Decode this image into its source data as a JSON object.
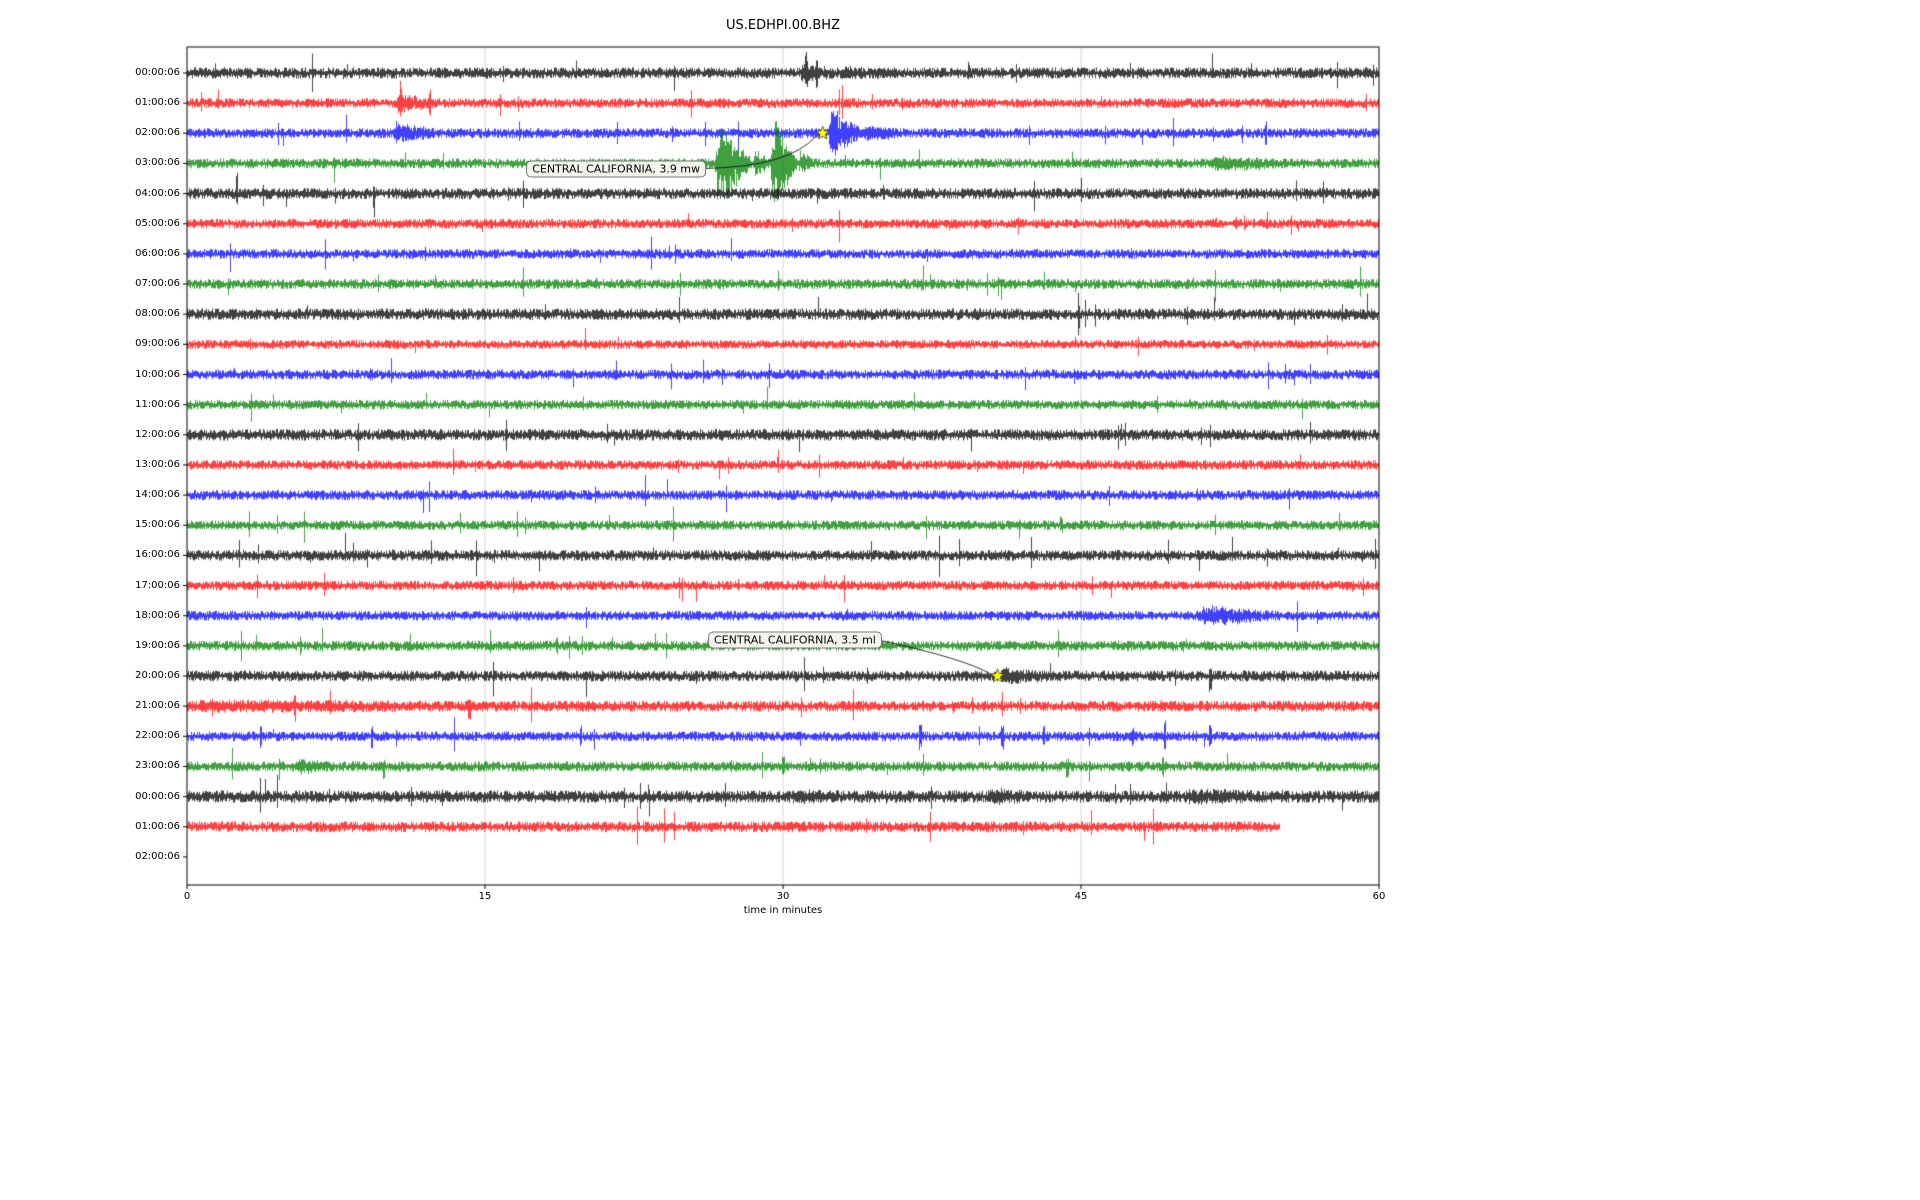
{
  "chart_data": {
    "type": "line",
    "subtype": "seismogram-dayplot",
    "title": "US.EDHPI.00.BHZ",
    "xlabel": "time in minutes",
    "xlim": [
      0,
      60
    ],
    "x_ticks": [
      0,
      15,
      30,
      45,
      60
    ],
    "grid": "vertical-only",
    "trace_colors_cycle": [
      "#000000",
      "#ff0000",
      "#0000ff",
      "#008000"
    ],
    "grid_color": "#cccccc",
    "frame_color": "#000000",
    "marker_color": "#ffff00",
    "rows": [
      {
        "label": "00:00:06",
        "color": "#000000",
        "amp": 3.0,
        "end": 60
      },
      {
        "label": "01:00:06",
        "color": "#ff0000",
        "amp": 2.6,
        "end": 60
      },
      {
        "label": "02:00:06",
        "color": "#0000ff",
        "amp": 2.7,
        "end": 60
      },
      {
        "label": "03:00:06",
        "color": "#008000",
        "amp": 2.7,
        "end": 60
      },
      {
        "label": "04:00:06",
        "color": "#000000",
        "amp": 3.0,
        "end": 60
      },
      {
        "label": "05:00:06",
        "color": "#ff0000",
        "amp": 2.6,
        "end": 60
      },
      {
        "label": "06:00:06",
        "color": "#0000ff",
        "amp": 2.6,
        "end": 60
      },
      {
        "label": "07:00:06",
        "color": "#008000",
        "amp": 2.7,
        "end": 60
      },
      {
        "label": "08:00:06",
        "color": "#000000",
        "amp": 3.1,
        "end": 60
      },
      {
        "label": "09:00:06",
        "color": "#ff0000",
        "amp": 2.4,
        "end": 60
      },
      {
        "label": "10:00:06",
        "color": "#0000ff",
        "amp": 2.7,
        "end": 60
      },
      {
        "label": "11:00:06",
        "color": "#008000",
        "amp": 2.6,
        "end": 60
      },
      {
        "label": "12:00:06",
        "color": "#000000",
        "amp": 3.1,
        "end": 60
      },
      {
        "label": "13:00:06",
        "color": "#ff0000",
        "amp": 2.6,
        "end": 60
      },
      {
        "label": "14:00:06",
        "color": "#0000ff",
        "amp": 2.7,
        "end": 60
      },
      {
        "label": "15:00:06",
        "color": "#008000",
        "amp": 2.6,
        "end": 60
      },
      {
        "label": "16:00:06",
        "color": "#000000",
        "amp": 2.9,
        "end": 60
      },
      {
        "label": "17:00:06",
        "color": "#ff0000",
        "amp": 2.6,
        "end": 60
      },
      {
        "label": "18:00:06",
        "color": "#0000ff",
        "amp": 2.6,
        "end": 60
      },
      {
        "label": "19:00:06",
        "color": "#008000",
        "amp": 2.7,
        "end": 60
      },
      {
        "label": "20:00:06",
        "color": "#000000",
        "amp": 2.9,
        "end": 60
      },
      {
        "label": "21:00:06",
        "color": "#ff0000",
        "amp": 2.9,
        "end": 60
      },
      {
        "label": "22:00:06",
        "color": "#0000ff",
        "amp": 2.6,
        "end": 60
      },
      {
        "label": "23:00:06",
        "color": "#008000",
        "amp": 2.7,
        "end": 60
      },
      {
        "label": "00:00:06",
        "color": "#000000",
        "amp": 3.3,
        "end": 60
      },
      {
        "label": "01:00:06",
        "color": "#ff0000",
        "amp": 2.9,
        "end": 55
      },
      {
        "label": "02:00:06",
        "color": "#000000",
        "amp": 0,
        "end": 0
      }
    ],
    "bursts": [
      {
        "row": 0,
        "start": 30.8,
        "end": 32.6,
        "amp": 6
      },
      {
        "row": 0,
        "start": 32.9,
        "end": 34.2,
        "amp": 4
      },
      {
        "row": 1,
        "start": 10.4,
        "end": 12.5,
        "amp": 7
      },
      {
        "row": 2,
        "start": 10.3,
        "end": 12.5,
        "amp": 9
      },
      {
        "row": 2,
        "start": 32.25,
        "end": 34.0,
        "amp": 26
      },
      {
        "row": 2,
        "start": 34.0,
        "end": 36.0,
        "amp": 5
      },
      {
        "row": 3,
        "start": 26.55,
        "end": 28.45,
        "amp": 52
      },
      {
        "row": 3,
        "start": 28.45,
        "end": 29.35,
        "amp": 16
      },
      {
        "row": 3,
        "start": 29.35,
        "end": 30.75,
        "amp": 52
      },
      {
        "row": 3,
        "start": 30.75,
        "end": 31.6,
        "amp": 10
      },
      {
        "row": 3,
        "start": 51.5,
        "end": 55.3,
        "amp": 5
      },
      {
        "row": 18,
        "start": 50.8,
        "end": 55.2,
        "amp": 8
      },
      {
        "row": 20,
        "start": 40.9,
        "end": 43.6,
        "amp": 5
      },
      {
        "row": 21,
        "start": 0.0,
        "end": 13.6,
        "amp": 2.5
      },
      {
        "row": 23,
        "start": 5.5,
        "end": 7.3,
        "amp": 5
      },
      {
        "row": 24,
        "start": 30.4,
        "end": 32.3,
        "amp": 3.5
      },
      {
        "row": 24,
        "start": 40.3,
        "end": 42.4,
        "amp": 4
      },
      {
        "row": 24,
        "start": 50.2,
        "end": 53.7,
        "amp": 4
      }
    ],
    "spikes": [
      {
        "row": 0,
        "minute": 31.15,
        "up": 12,
        "down": 9
      },
      {
        "row": 0,
        "minute": 31.7,
        "up": 9,
        "down": 12
      },
      {
        "row": 1,
        "minute": 10.75,
        "up": 17,
        "down": 6
      },
      {
        "row": 1,
        "minute": 12.2,
        "up": 13,
        "down": 13
      },
      {
        "row": 2,
        "minute": 54.3,
        "up": 8,
        "down": 8
      },
      {
        "row": 4,
        "minute": 2.5,
        "up": 21,
        "down": 12
      },
      {
        "row": 4,
        "minute": 9.4,
        "up": 4,
        "down": 19
      },
      {
        "row": 15,
        "minute": 44.0,
        "up": 5,
        "down": 4
      },
      {
        "row": 19,
        "minute": 5.7,
        "up": 5,
        "down": 5
      },
      {
        "row": 19,
        "minute": 18.6,
        "up": 6,
        "down": 6
      },
      {
        "row": 20,
        "minute": 51.5,
        "up": 4,
        "down": 11
      },
      {
        "row": 21,
        "minute": 5.4,
        "up": 9,
        "down": 9
      },
      {
        "row": 21,
        "minute": 14.2,
        "up": 5,
        "down": 15
      },
      {
        "row": 22,
        "minute": 3.7,
        "up": 8,
        "down": 8
      },
      {
        "row": 22,
        "minute": 9.3,
        "up": 9,
        "down": 9
      },
      {
        "row": 22,
        "minute": 19.8,
        "up": 8,
        "down": 8
      },
      {
        "row": 22,
        "minute": 36.9,
        "up": 10,
        "down": 10
      },
      {
        "row": 22,
        "minute": 41.0,
        "up": 9,
        "down": 9
      },
      {
        "row": 22,
        "minute": 43.1,
        "up": 8,
        "down": 8
      },
      {
        "row": 22,
        "minute": 47.6,
        "up": 8,
        "down": 8
      },
      {
        "row": 22,
        "minute": 49.2,
        "up": 17,
        "down": 17
      },
      {
        "row": 22,
        "minute": 51.5,
        "up": 7,
        "down": 7
      },
      {
        "row": 23,
        "minute": 9.9,
        "up": 5,
        "down": 12
      },
      {
        "row": 23,
        "minute": 30.0,
        "up": 9,
        "down": 6
      },
      {
        "row": 23,
        "minute": 44.3,
        "up": 4,
        "down": 11
      },
      {
        "row": 23,
        "minute": 49.1,
        "up": 8,
        "down": 8
      }
    ],
    "events": [
      {
        "label": "CENTRAL CALIFORNIA, 3.9 mw",
        "row": 2,
        "minute": 32.0,
        "label_pos": {
          "minute": 21.6,
          "row": 3.2
        }
      },
      {
        "label": "CENTRAL CALIFORNIA, 3.5 ml",
        "row": 20,
        "minute": 40.8,
        "label_pos": {
          "minute": 30.6,
          "row": 18.8
        }
      }
    ]
  }
}
